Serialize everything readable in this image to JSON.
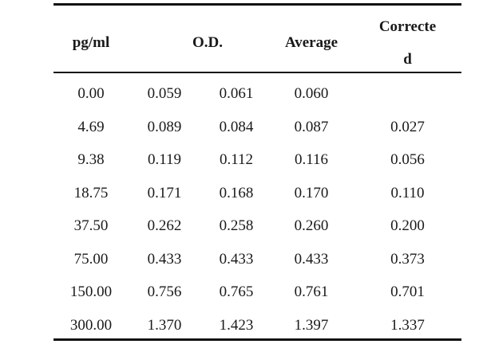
{
  "table": {
    "headers": {
      "pgml": "pg/ml",
      "od": "O.D.",
      "average": "Average",
      "corrected_line1": "Correcte",
      "corrected_line2": "d"
    },
    "rows": [
      {
        "pgml": "0.00",
        "od1": "0.059",
        "od2": "0.061",
        "average": "0.060",
        "corrected": ""
      },
      {
        "pgml": "4.69",
        "od1": "0.089",
        "od2": "0.084",
        "average": "0.087",
        "corrected": "0.027"
      },
      {
        "pgml": "9.38",
        "od1": "0.119",
        "od2": "0.112",
        "average": "0.116",
        "corrected": "0.056"
      },
      {
        "pgml": "18.75",
        "od1": "0.171",
        "od2": "0.168",
        "average": "0.170",
        "corrected": "0.110"
      },
      {
        "pgml": "37.50",
        "od1": "0.262",
        "od2": "0.258",
        "average": "0.260",
        "corrected": "0.200"
      },
      {
        "pgml": "75.00",
        "od1": "0.433",
        "od2": "0.433",
        "average": "0.433",
        "corrected": "0.373"
      },
      {
        "pgml": "150.00",
        "od1": "0.756",
        "od2": "0.765",
        "average": "0.761",
        "corrected": "0.701"
      },
      {
        "pgml": "300.00",
        "od1": "1.370",
        "od2": "1.423",
        "average": "1.397",
        "corrected": "1.337"
      }
    ]
  }
}
